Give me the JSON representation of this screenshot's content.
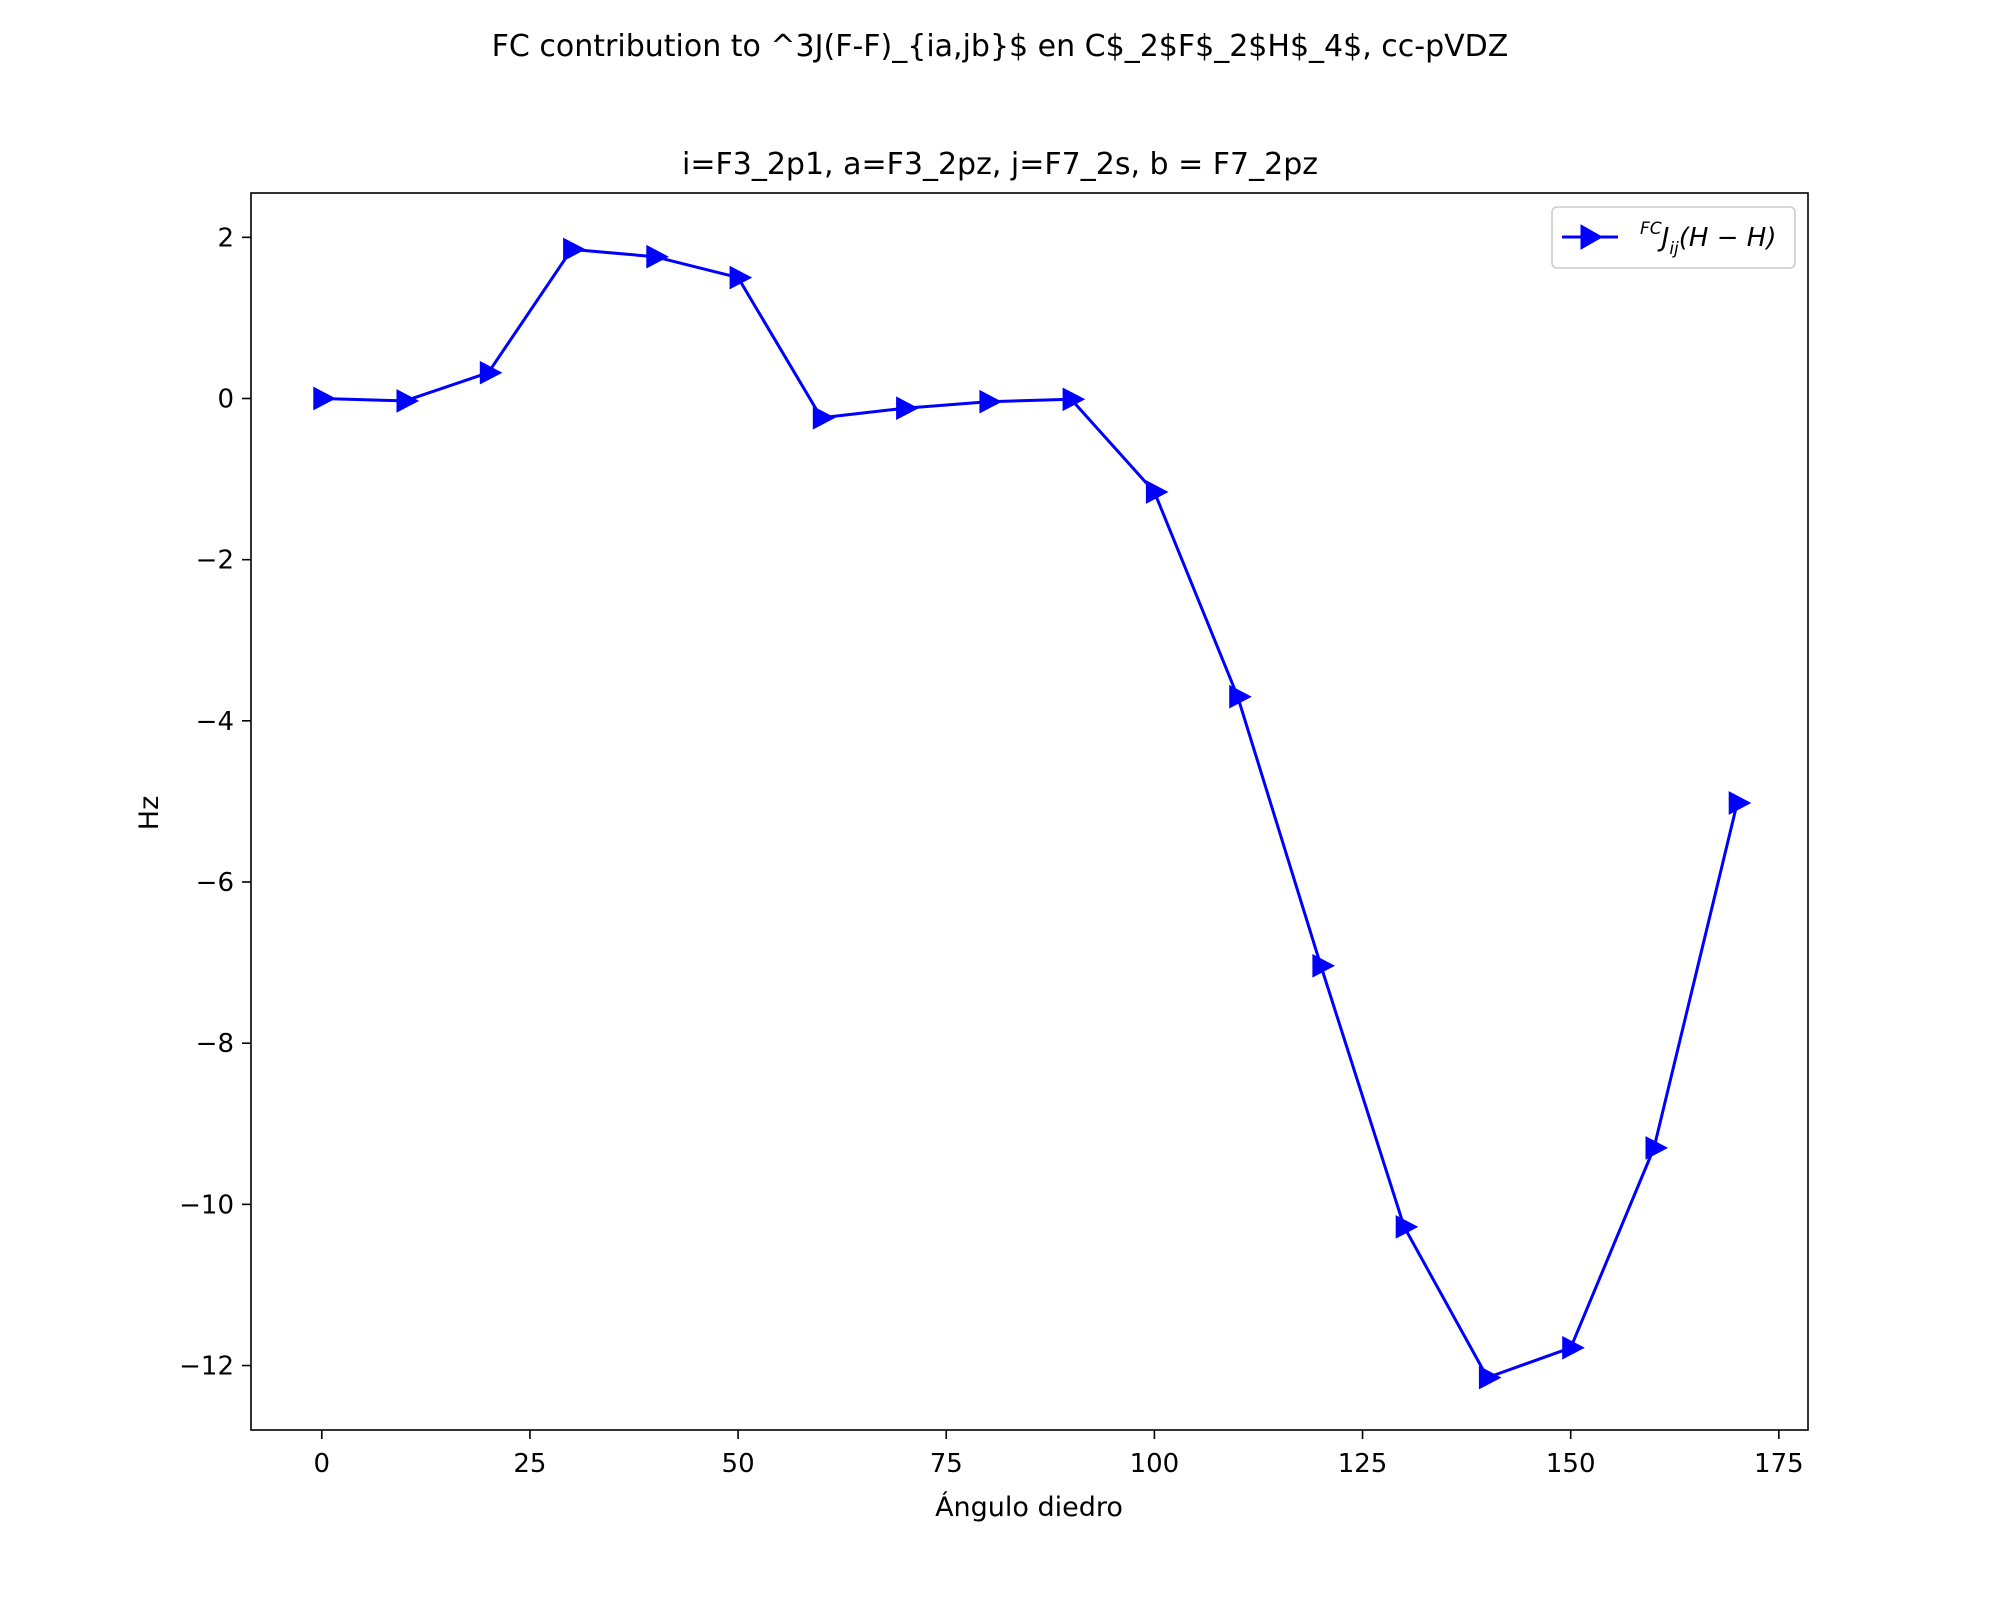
{
  "figure": {
    "suptitle": "FC contribution to ^3J(F-F)_{ia,jb}$ en C$_2$F$_2$H$_4$, cc-pVDZ"
  },
  "chart_data": {
    "type": "line",
    "title": "i=F3_2p1, a=F3_2pz, j=F7_2s, b = F7_2pz",
    "xlabel": "Ángulo diedro",
    "ylabel": "Hz",
    "xlim": [
      -8.5,
      178.5
    ],
    "ylim": [
      -12.8,
      2.55
    ],
    "xticks": [
      0,
      25,
      50,
      75,
      100,
      125,
      150,
      175
    ],
    "yticks": [
      2,
      0,
      -2,
      -4,
      -6,
      -8,
      -10,
      -12
    ],
    "xtick_labels": [
      "0",
      "25",
      "50",
      "75",
      "100",
      "125",
      "150",
      "175"
    ],
    "ytick_labels": [
      "2",
      "0",
      "−2",
      "−4",
      "−6",
      "−8",
      "−10",
      "−12"
    ],
    "grid": false,
    "legend_position": "top-right",
    "series": [
      {
        "name": "FC J ij (H − H)",
        "legend": {
          "sup": "FC",
          "main": "J",
          "sub": "ij",
          "rest": "(H − H)"
        },
        "color": "#0000ff",
        "marker": "triangle-right",
        "x": [
          0,
          10,
          20,
          30,
          40,
          50,
          60,
          70,
          80,
          90,
          100,
          110,
          120,
          130,
          140,
          150,
          160,
          170
        ],
        "y": [
          0.0,
          -0.03,
          0.32,
          1.85,
          1.76,
          1.5,
          -0.24,
          -0.12,
          -0.04,
          -0.01,
          -1.16,
          -3.7,
          -7.04,
          -10.28,
          -12.15,
          -11.78,
          -9.3,
          -5.02
        ]
      }
    ]
  }
}
